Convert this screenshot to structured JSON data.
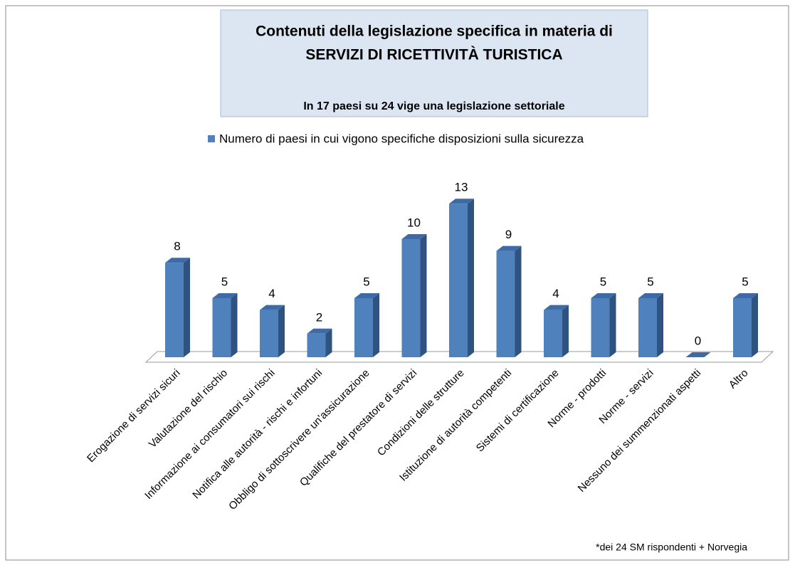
{
  "chart_data": {
    "type": "bar3d",
    "title": [
      "Contenuti della legislazione specifica in materia di",
      "SERVIZI DI RICETTIVITÀ TURISTICA"
    ],
    "subtitle": "In 17 paesi su 24 vige una legislazione settoriale",
    "footnote": "*dei 24 SM rispondenti + Norvegia",
    "categories": [
      "Erogazione di servizi sicuri",
      "Valutazione del rischio",
      "Informazione ai consumatori sui rischi",
      "Notifica alle autorità - rischi e infortuni",
      "Obbligo di sottoscrivere un'assicurazione",
      "Qualifiche del prestatore di servizi",
      "Condizioni delle strutture",
      "Istituzione di autorità competenti",
      "Sistemi di certificazione",
      "Norme - prodotti",
      "Norme - servizi",
      "Nessuno dei summenzionati aspetti",
      "Altro"
    ],
    "series": [
      {
        "name": "Numero di paesi in cui vigono specifiche disposizioni sulla sicurezza",
        "color": "#4f81bd",
        "values": [
          8,
          5,
          4,
          2,
          5,
          10,
          13,
          9,
          4,
          5,
          5,
          0,
          5
        ]
      }
    ],
    "legend": "top"
  }
}
